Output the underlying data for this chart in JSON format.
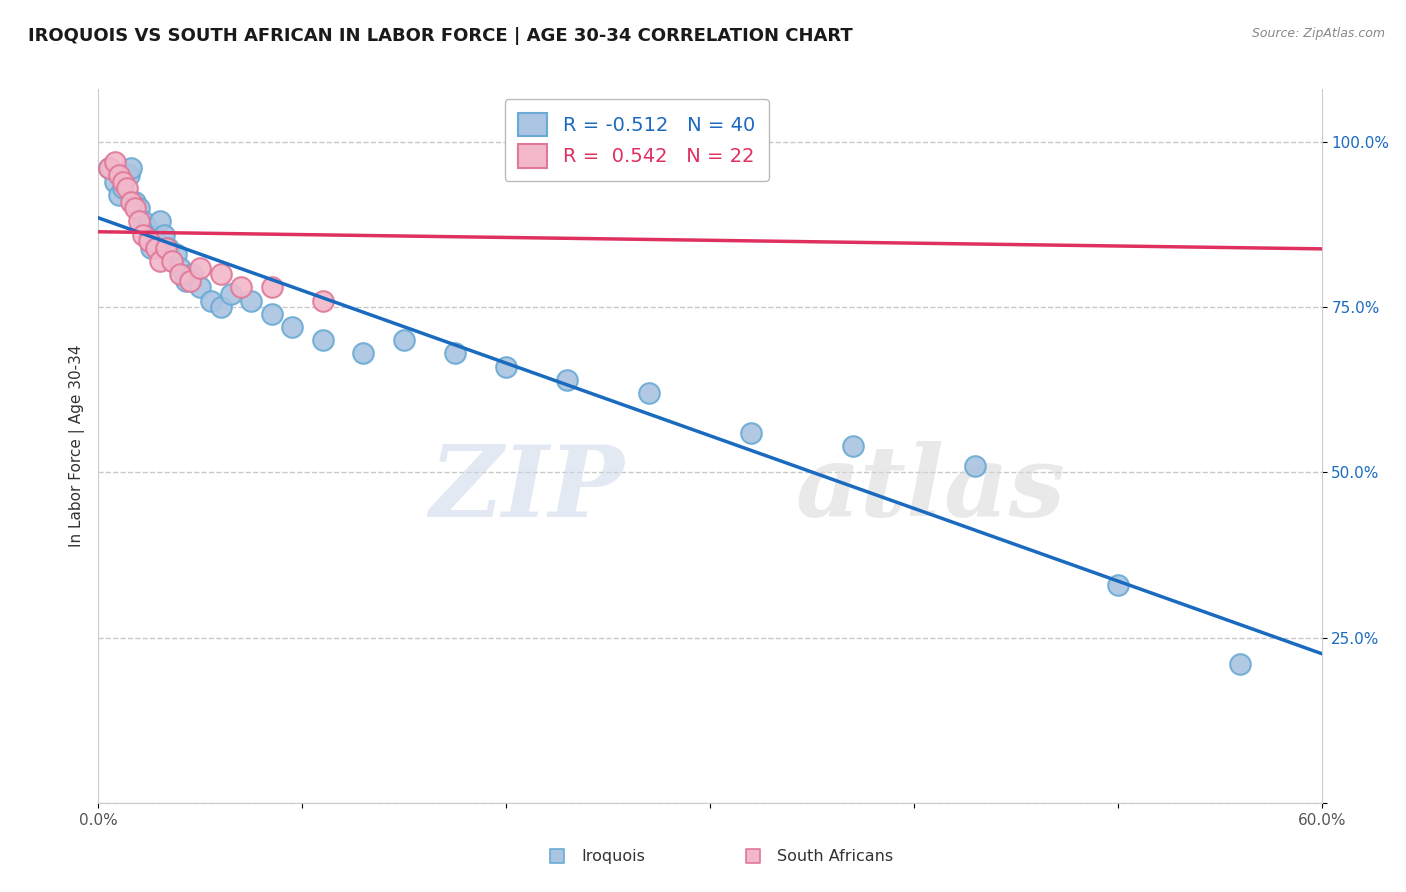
{
  "title": "IROQUOIS VS SOUTH AFRICAN IN LABOR FORCE | AGE 30-34 CORRELATION CHART",
  "source": "Source: ZipAtlas.com",
  "ylabel": "In Labor Force | Age 30-34",
  "xlim": [
    0.0,
    0.6
  ],
  "ylim": [
    0.0,
    1.08
  ],
  "xticks": [
    0.0,
    0.1,
    0.2,
    0.3,
    0.4,
    0.5,
    0.6
  ],
  "xticklabels": [
    "0.0%",
    "",
    "",
    "",
    "",
    "",
    "60.0%"
  ],
  "yticks": [
    0.0,
    0.25,
    0.5,
    0.75,
    1.0
  ],
  "yticklabels": [
    "",
    "25.0%",
    "50.0%",
    "75.0%",
    "100.0%"
  ],
  "iroquois_color": "#aac4e2",
  "iroquois_edge": "#6aaad4",
  "sa_color": "#f2b8ca",
  "sa_edge": "#e07898",
  "trend_iroquois_color": "#1a6bbf",
  "trend_sa_color": "#e03060",
  "legend_r_iroquois": "-0.512",
  "legend_n_iroquois": "40",
  "legend_r_sa": "0.542",
  "legend_n_sa": "22",
  "iroquois_x": [
    0.005,
    0.008,
    0.01,
    0.012,
    0.015,
    0.016,
    0.018,
    0.02,
    0.022,
    0.024,
    0.025,
    0.026,
    0.028,
    0.03,
    0.032,
    0.034,
    0.036,
    0.038,
    0.04,
    0.043,
    0.046,
    0.05,
    0.055,
    0.06,
    0.065,
    0.075,
    0.085,
    0.095,
    0.11,
    0.13,
    0.15,
    0.175,
    0.2,
    0.23,
    0.27,
    0.32,
    0.37,
    0.43,
    0.5,
    0.56
  ],
  "iroquois_y": [
    0.96,
    0.94,
    0.92,
    0.93,
    0.95,
    0.96,
    0.91,
    0.9,
    0.88,
    0.87,
    0.86,
    0.84,
    0.85,
    0.88,
    0.86,
    0.84,
    0.82,
    0.83,
    0.81,
    0.79,
    0.8,
    0.78,
    0.76,
    0.75,
    0.77,
    0.76,
    0.74,
    0.72,
    0.7,
    0.68,
    0.7,
    0.68,
    0.66,
    0.64,
    0.62,
    0.56,
    0.54,
    0.51,
    0.33,
    0.21
  ],
  "sa_x": [
    0.005,
    0.008,
    0.01,
    0.012,
    0.014,
    0.016,
    0.018,
    0.02,
    0.022,
    0.025,
    0.028,
    0.03,
    0.033,
    0.036,
    0.04,
    0.045,
    0.05,
    0.06,
    0.07,
    0.085,
    0.11,
    0.27
  ],
  "sa_y": [
    0.96,
    0.97,
    0.95,
    0.94,
    0.93,
    0.91,
    0.9,
    0.88,
    0.86,
    0.85,
    0.84,
    0.82,
    0.84,
    0.82,
    0.8,
    0.79,
    0.81,
    0.8,
    0.78,
    0.78,
    0.76,
    0.98
  ],
  "watermark_zip": "ZIP",
  "watermark_atlas": "atlas",
  "background_color": "#ffffff",
  "grid_color": "#c8c8c8",
  "grid_style": "--",
  "title_fontsize": 13,
  "axis_label_fontsize": 11,
  "tick_fontsize": 11,
  "legend_fontsize": 14
}
